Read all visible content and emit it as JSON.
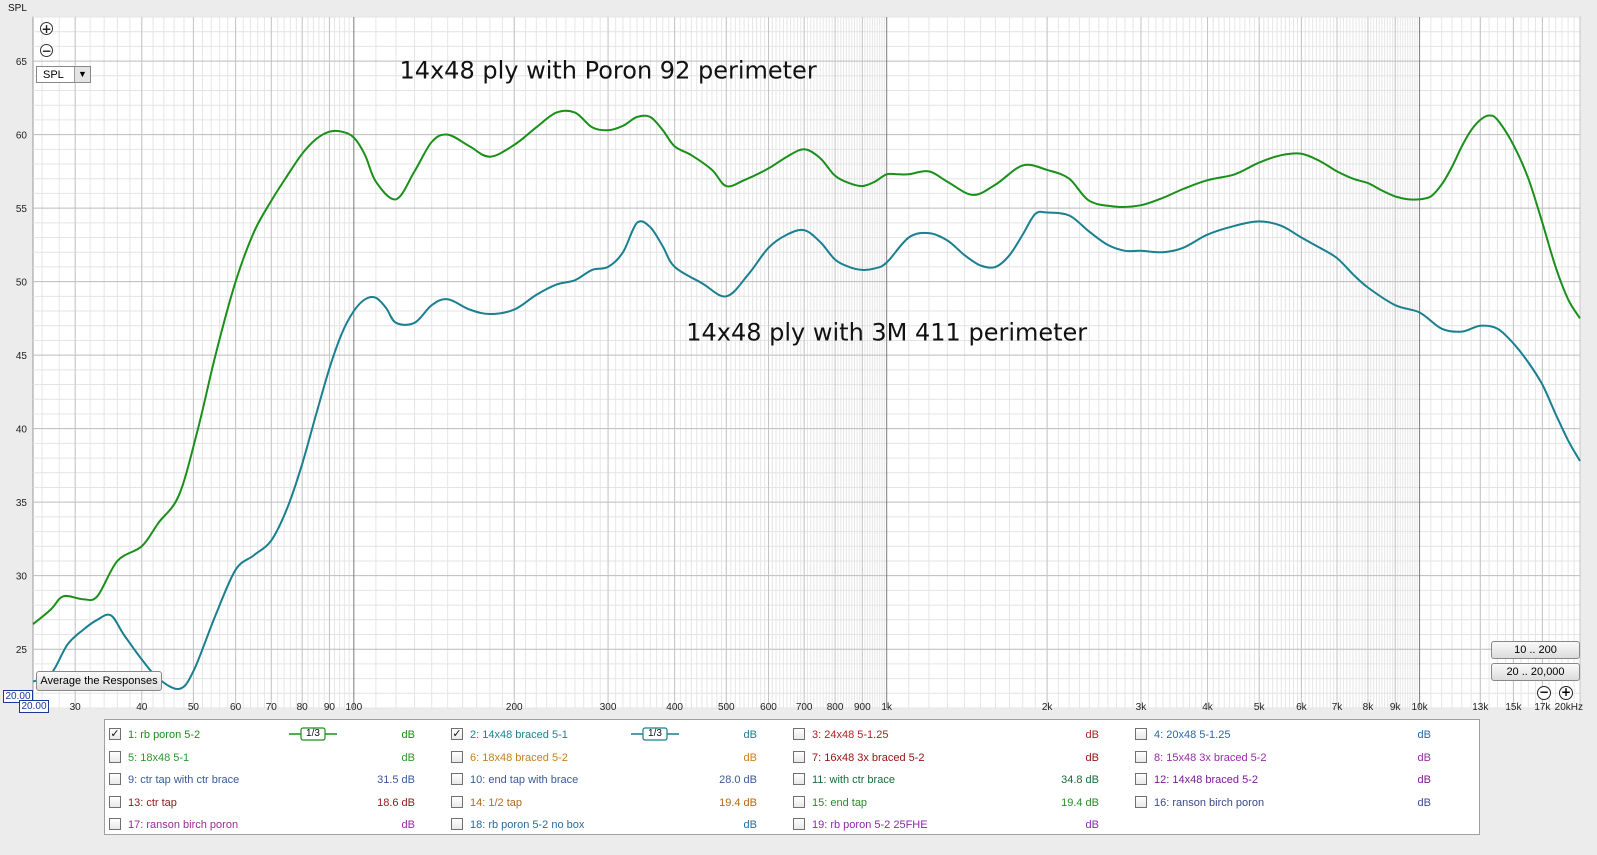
{
  "y_axis_title": "SPL",
  "spl_dropdown": {
    "value": "SPL",
    "arrow_icon": "triangle-down"
  },
  "controls": {
    "zoom_in_icon": "plus-circle-icon",
    "zoom_out_icon": "minus-circle-icon"
  },
  "average_button": "Average the Responses",
  "range_buttons": [
    "10 .. 200",
    "20 .. 20,000"
  ],
  "min_values": [
    "20.00",
    "20.00"
  ],
  "chart_data": {
    "type": "line",
    "x_scale": "log",
    "xlim": [
      25,
      20000
    ],
    "ylim": [
      21,
      68
    ],
    "grid": true,
    "yticks": [
      25,
      30,
      35,
      40,
      45,
      50,
      55,
      60,
      65
    ],
    "ytick_labels": [
      "25",
      "30",
      "35",
      "40",
      "45",
      "50",
      "55",
      "60",
      "65"
    ],
    "xticks": [
      30,
      40,
      50,
      60,
      70,
      80,
      90,
      100,
      200,
      300,
      400,
      500,
      600,
      700,
      800,
      900,
      1000,
      2000,
      3000,
      4000,
      5000,
      6000,
      7000,
      8000,
      9000,
      10000,
      13000,
      15000,
      17000,
      20000
    ],
    "xtick_labels": [
      "30",
      "40",
      "50",
      "60",
      "70",
      "80",
      "90",
      "100",
      "200",
      "300",
      "400",
      "500",
      "600",
      "700",
      "800",
      "900",
      "1k",
      "2k",
      "3k",
      "4k",
      "5k",
      "6k",
      "7k",
      "8k",
      "9k",
      "10k",
      "13k",
      "15k",
      "17k",
      "20kHz"
    ],
    "annotations": [
      {
        "text": "14x48 ply with Poron 92 perimeter",
        "x": 300,
        "y": 63.8
      },
      {
        "text": "14x48 ply with 3M 411 perimeter",
        "x": 1000,
        "y": 46.0
      }
    ],
    "series": [
      {
        "name": "1: rb poron 5-2",
        "color": "#1a8f1a",
        "x": [
          25,
          27,
          28.5,
          31,
          33,
          36,
          40,
          43,
          47,
          51,
          55,
          60,
          65,
          70,
          75,
          80,
          85,
          90,
          95,
          100,
          105,
          110,
          120,
          130,
          140,
          150,
          165,
          180,
          200,
          220,
          240,
          260,
          280,
          300,
          320,
          340,
          360,
          380,
          400,
          430,
          470,
          500,
          540,
          600,
          650,
          700,
          750,
          800,
          850,
          900,
          950,
          1000,
          1050,
          1100,
          1200,
          1300,
          1450,
          1600,
          1800,
          2000,
          2200,
          2400,
          2700,
          3000,
          3300,
          3600,
          4000,
          4500,
          5000,
          5500,
          6000,
          6500,
          7000,
          7500,
          8000,
          8500,
          9000,
          9500,
          10000,
          10500,
          11000,
          11500,
          12000,
          12500,
          13000,
          13500,
          14000,
          15000,
          16000,
          17000,
          18000,
          19000,
          20000
        ],
        "y": [
          26.7,
          27.7,
          28.6,
          28.4,
          28.6,
          31.0,
          32.0,
          33.6,
          35.5,
          40.0,
          45.0,
          50.0,
          53.4,
          55.5,
          57.2,
          58.7,
          59.7,
          60.2,
          60.2,
          59.8,
          58.6,
          56.8,
          55.6,
          57.5,
          59.5,
          60.0,
          59.2,
          58.5,
          59.3,
          60.5,
          61.5,
          61.5,
          60.5,
          60.3,
          60.6,
          61.2,
          61.2,
          60.3,
          59.2,
          58.6,
          57.6,
          56.5,
          56.9,
          57.7,
          58.5,
          59.0,
          58.4,
          57.2,
          56.7,
          56.5,
          56.8,
          57.3,
          57.3,
          57.3,
          57.5,
          56.8,
          55.9,
          56.6,
          57.9,
          57.6,
          57.0,
          55.5,
          55.1,
          55.2,
          55.7,
          56.3,
          56.9,
          57.3,
          58.1,
          58.6,
          58.7,
          58.2,
          57.5,
          57.0,
          56.7,
          56.2,
          55.8,
          55.6,
          55.6,
          55.8,
          56.6,
          57.8,
          59.2,
          60.3,
          61.0,
          61.3,
          61.0,
          59.3,
          57.0,
          54.0,
          51.0,
          48.8,
          47.5
        ]
      },
      {
        "name": "2: 14x48 braced 5-1",
        "color": "#1a7f8f",
        "x": [
          25,
          27,
          29,
          31,
          33,
          35,
          37,
          40,
          43,
          47,
          50,
          55,
          60,
          65,
          70,
          75,
          80,
          85,
          90,
          95,
          100,
          105,
          110,
          115,
          120,
          130,
          140,
          150,
          165,
          180,
          200,
          220,
          240,
          260,
          280,
          300,
          320,
          340,
          360,
          380,
          400,
          450,
          500,
          550,
          600,
          650,
          700,
          750,
          800,
          850,
          900,
          950,
          1000,
          1100,
          1200,
          1300,
          1400,
          1500,
          1600,
          1700,
          1800,
          1900,
          2000,
          2200,
          2400,
          2600,
          2800,
          3000,
          3300,
          3600,
          4000,
          4500,
          5000,
          5500,
          6000,
          6500,
          7000,
          7500,
          8000,
          9000,
          10000,
          11000,
          12000,
          13000,
          14000,
          15000,
          16000,
          17000,
          18000,
          19000,
          20000
        ],
        "y": [
          22.8,
          23.3,
          25.3,
          26.3,
          27.0,
          27.3,
          26.0,
          24.3,
          23.0,
          22.3,
          23.5,
          27.3,
          30.4,
          31.4,
          32.4,
          34.6,
          37.6,
          41.0,
          44.1,
          46.5,
          48.0,
          48.8,
          48.9,
          48.2,
          47.2,
          47.2,
          48.4,
          48.8,
          48.1,
          47.8,
          48.1,
          49.1,
          49.8,
          50.1,
          50.8,
          51.0,
          52.0,
          54.0,
          53.7,
          52.4,
          51.0,
          49.9,
          49.0,
          50.5,
          52.3,
          53.2,
          53.5,
          52.7,
          51.5,
          51.0,
          50.8,
          50.9,
          51.3,
          53.0,
          53.3,
          52.8,
          51.8,
          51.1,
          51.0,
          51.8,
          53.2,
          54.6,
          54.7,
          54.5,
          53.4,
          52.5,
          52.1,
          52.1,
          52.0,
          52.3,
          53.2,
          53.8,
          54.1,
          53.8,
          53.0,
          52.3,
          51.6,
          50.5,
          49.6,
          48.4,
          47.9,
          46.8,
          46.6,
          47.0,
          46.8,
          45.8,
          44.5,
          43.0,
          41.0,
          39.2,
          37.8
        ]
      }
    ]
  },
  "legend": [
    {
      "name": "1: rb poron 5-2",
      "checked": true,
      "smoothing": "1/3",
      "db": "dB",
      "color": "#1a8f1a"
    },
    {
      "name": "2: 14x48 braced 5-1",
      "checked": true,
      "smoothing": "1/3",
      "db": "dB",
      "color": "#1a7f8f"
    },
    {
      "name": "3: 24x48 5-1.25",
      "checked": false,
      "smoothing": "",
      "db": "dB",
      "color": "#b02020"
    },
    {
      "name": "4: 20x48 5-1.25",
      "checked": false,
      "smoothing": "",
      "db": "dB",
      "color": "#2a68a8"
    },
    {
      "name": "5: 18x48 5-1",
      "checked": false,
      "smoothing": "",
      "db": "dB",
      "color": "#2a9a2a"
    },
    {
      "name": "6: 18x48 braced 5-2",
      "checked": false,
      "smoothing": "",
      "db": "dB",
      "color": "#c8801a"
    },
    {
      "name": "7: 16x48 3x braced 5-2",
      "checked": false,
      "smoothing": "",
      "db": "dB",
      "color": "#9a1010"
    },
    {
      "name": "8: 15x48 3x braced 5-2",
      "checked": false,
      "smoothing": "",
      "db": "dB",
      "color": "#9a2aa8"
    },
    {
      "name": "9: ctr tap with ctr brace",
      "checked": false,
      "smoothing": "",
      "db": "31.5 dB",
      "color": "#3a5a98"
    },
    {
      "name": "10: end tap with brace",
      "checked": false,
      "smoothing": "",
      "db": "28.0 dB",
      "color": "#3a5a98"
    },
    {
      "name": "11: with ctr brace",
      "checked": false,
      "smoothing": "",
      "db": "34.8 dB",
      "color": "#1a6a3a"
    },
    {
      "name": "12: 14x48 braced 5-2",
      "checked": false,
      "smoothing": "",
      "db": "dB",
      "color": "#7a1a9a"
    },
    {
      "name": "13: ctr tap",
      "checked": false,
      "smoothing": "",
      "db": "18.6 dB",
      "color": "#8a1a1a"
    },
    {
      "name": "14: 1/2 tap",
      "checked": false,
      "smoothing": "",
      "db": "19.4 dB",
      "color": "#b06a1a"
    },
    {
      "name": "15: end tap",
      "checked": false,
      "smoothing": "",
      "db": "19.4 dB",
      "color": "#2a8a2a"
    },
    {
      "name": "16: ranson birch  poron",
      "checked": false,
      "smoothing": "",
      "db": "dB",
      "color": "#3a4a88"
    },
    {
      "name": "17: ranson birch poron",
      "checked": false,
      "smoothing": "",
      "db": "dB",
      "color": "#9a2a9a"
    },
    {
      "name": "18: rb poron 5-2 no box",
      "checked": false,
      "smoothing": "",
      "db": "dB",
      "color": "#2a6a9a"
    },
    {
      "name": "19: rb poron 5-2 25FHE",
      "checked": false,
      "smoothing": "",
      "db": "dB",
      "color": "#8a2aa8"
    }
  ]
}
